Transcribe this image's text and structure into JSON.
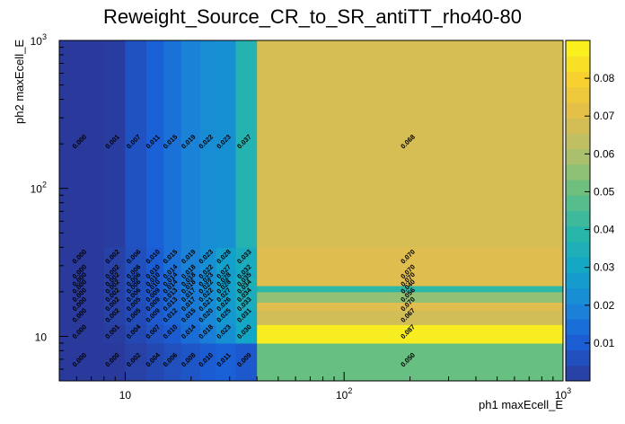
{
  "chart_data": {
    "type": "heatmap",
    "title": "Reweight_Source_CR_to_SR_antiTT_rho40-80",
    "xlabel": "ph1 maxEcell_E",
    "ylabel": "ph2 maxEcell_E",
    "x_scale": "log",
    "y_scale": "log",
    "x_range": [
      5,
      1000
    ],
    "y_range": [
      5,
      1000
    ],
    "x_ticks": [
      {
        "v": 10,
        "label": "10"
      },
      {
        "v": 100,
        "label": "10"
      },
      {
        "v": 1000,
        "label": "10"
      }
    ],
    "x_tick_exponents": [
      "",
      "2",
      "3"
    ],
    "y_ticks": [
      {
        "v": 10,
        "label": "10"
      },
      {
        "v": 100,
        "label": "10"
      },
      {
        "v": 1000,
        "label": "10"
      }
    ],
    "y_tick_exponents": [
      "",
      "2",
      "3"
    ],
    "x_edges": [
      5,
      8,
      10,
      12.5,
      15,
      18,
      22,
      26,
      32,
      40,
      1000
    ],
    "y_edges": [
      5,
      9,
      12,
      15,
      17,
      20,
      22,
      25,
      28,
      40,
      1000
    ],
    "z_range": [
      0,
      0.09
    ],
    "colorbar_ticks": [
      {
        "v": 0.01,
        "label": "0.01"
      },
      {
        "v": 0.02,
        "label": "0.02"
      },
      {
        "v": 0.03,
        "label": "0.03"
      },
      {
        "v": 0.04,
        "label": "0.04"
      },
      {
        "v": 0.05,
        "label": "0.05"
      },
      {
        "v": 0.06,
        "label": "0.06"
      },
      {
        "v": 0.07,
        "label": "0.07"
      },
      {
        "v": 0.08,
        "label": "0.08"
      }
    ],
    "values": [
      [
        0.0,
        0.0,
        0.002,
        0.004,
        0.006,
        0.008,
        0.01,
        0.011,
        0.009,
        0.05
      ],
      [
        0.0,
        0.001,
        0.004,
        0.007,
        0.01,
        0.014,
        0.018,
        0.023,
        0.03,
        0.087
      ],
      [
        0.0,
        0.002,
        0.005,
        0.009,
        0.012,
        0.015,
        0.02,
        0.025,
        0.031,
        0.067
      ],
      [
        0.0,
        0.002,
        0.005,
        0.009,
        0.013,
        0.017,
        0.021,
        0.026,
        0.033,
        0.07
      ],
      [
        0.0,
        0.002,
        0.006,
        0.009,
        0.013,
        0.017,
        0.022,
        0.027,
        0.034,
        0.056
      ],
      [
        0.0,
        0.002,
        0.006,
        0.01,
        0.014,
        0.018,
        0.022,
        0.028,
        0.034,
        0.04
      ],
      [
        0.0,
        0.002,
        0.006,
        0.01,
        0.014,
        0.018,
        0.023,
        0.028,
        0.035,
        0.07
      ],
      [
        0.0,
        0.002,
        0.006,
        0.01,
        0.014,
        0.018,
        0.022,
        0.027,
        0.032,
        0.07
      ],
      [
        0.0,
        0.002,
        0.006,
        0.01,
        0.015,
        0.019,
        0.023,
        0.028,
        0.033,
        0.07
      ],
      [
        0.0,
        0.001,
        0.007,
        0.011,
        0.015,
        0.019,
        0.022,
        0.023,
        0.037,
        0.068
      ]
    ],
    "labels": [
      {
        "x": 462,
        "y": 144,
        "text": "0.050"
      },
      {
        "x": 462,
        "y": 113,
        "text": "0.067"
      },
      {
        "x": 462,
        "y": 76,
        "text": "0.070"
      },
      {
        "x": 462,
        "y": 74,
        "text": "0.040"
      },
      {
        "x": 462,
        "y": 38,
        "text": "0.070"
      },
      {
        "x": 462,
        "y": 352,
        "text": "0.068"
      },
      {
        "x": 30,
        "y": 352,
        "text": "0.001"
      },
      {
        "x": 60,
        "y": 352,
        "text": "0.007"
      },
      {
        "x": 88,
        "y": 352,
        "text": "0.011"
      },
      {
        "x": 112,
        "y": 352,
        "text": "0.015"
      },
      {
        "x": 136,
        "y": 352,
        "text": "0.019"
      },
      {
        "x": 160,
        "y": 352,
        "text": "0.022"
      },
      {
        "x": 182,
        "y": 352,
        "text": "0.023"
      },
      {
        "x": 208,
        "y": 352,
        "text": "0.037"
      }
    ]
  }
}
